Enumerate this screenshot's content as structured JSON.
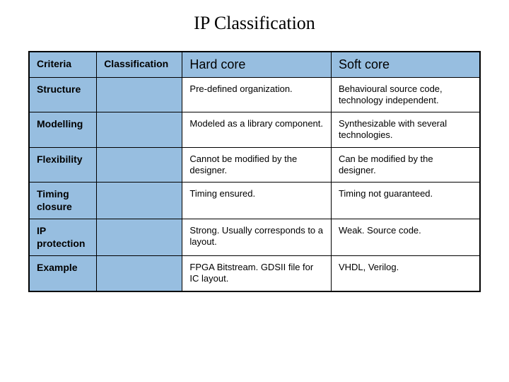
{
  "title": "IP Classification",
  "colors": {
    "header_bg": "#97bee0",
    "border": "#000000",
    "text": "#000000",
    "background": "#ffffff"
  },
  "table": {
    "columns": [
      "Criteria",
      "Classification",
      "Hard core",
      "Soft core"
    ],
    "rows": [
      {
        "label": "Structure",
        "hard": "Pre-defined organization.",
        "soft": "Behavioural source code, technology independent."
      },
      {
        "label": "Modelling",
        "hard": "Modeled as a library component.",
        "soft": "Synthesizable with several technologies."
      },
      {
        "label": "Flexibility",
        "hard": "Cannot be modified by the designer.",
        "soft": "Can be modified by the designer."
      },
      {
        "label": "Timing closure",
        "hard": "Timing ensured.",
        "soft": "Timing not guaranteed."
      },
      {
        "label": "IP protection",
        "hard": "Strong. Usually corresponds to a layout.",
        "soft": "Weak. Source code."
      },
      {
        "label": "Example",
        "hard": "FPGA Bitstream. GDSII file for IC layout.",
        "soft": "VHDL, Verilog."
      }
    ]
  }
}
